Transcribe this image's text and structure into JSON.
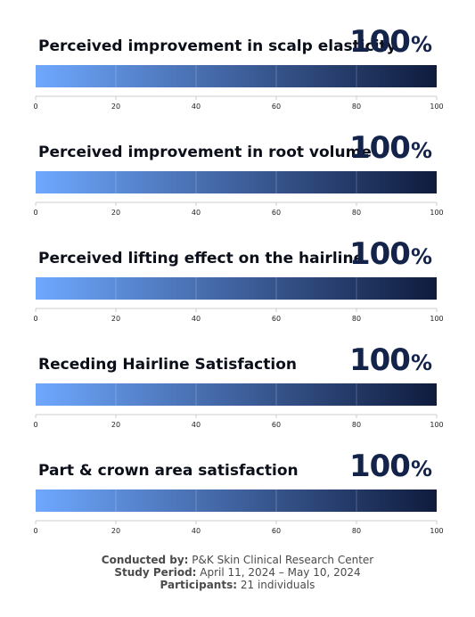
{
  "chart_data": [
    {
      "type": "bar",
      "title": "Perceived improvement in scalp elasticity",
      "value": 100,
      "value_label": "100",
      "unit": "%",
      "xlim": [
        0,
        100
      ],
      "ticks": [
        0,
        20,
        40,
        60,
        80,
        100
      ]
    },
    {
      "type": "bar",
      "title": "Perceived improvement in root volume",
      "value": 100,
      "value_label": "100",
      "unit": "%",
      "xlim": [
        0,
        100
      ],
      "ticks": [
        0,
        20,
        40,
        60,
        80,
        100
      ]
    },
    {
      "type": "bar",
      "title": "Perceived lifting effect on the hairline",
      "value": 100,
      "value_label": "100",
      "unit": "%",
      "xlim": [
        0,
        100
      ],
      "ticks": [
        0,
        20,
        40,
        60,
        80,
        100
      ]
    },
    {
      "type": "bar",
      "title": "Receding Hairline Satisfaction",
      "value": 100,
      "value_label": "100",
      "unit": "%",
      "xlim": [
        0,
        100
      ],
      "ticks": [
        0,
        20,
        40,
        60,
        80,
        100
      ]
    },
    {
      "type": "bar",
      "title": "Part & crown area satisfaction",
      "value": 100,
      "value_label": "100",
      "unit": "%",
      "xlim": [
        0,
        100
      ],
      "ticks": [
        0,
        20,
        40,
        60,
        80,
        100
      ]
    }
  ],
  "colors": {
    "bar_start": "#6fa8ff",
    "bar_end": "#0f1b3d",
    "value_text": "#13234a"
  },
  "footer": {
    "conducted_label": "Conducted by:",
    "conducted_value": "P&K Skin Clinical Research Center",
    "period_label": "Study Period:",
    "period_value": "April 11, 2024 – May 10, 2024",
    "participants_label": "Participants:",
    "participants_value": "21 individuals"
  }
}
